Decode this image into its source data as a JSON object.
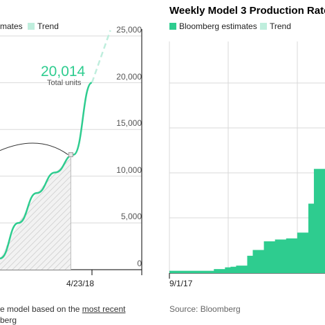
{
  "colors": {
    "estimate": "#2ecc8f",
    "trend": "#bfeedd",
    "grid": "#d9d9d9",
    "hatch": "#cfcfcf"
  },
  "left_panel": {
    "legend_estimates_fragment": "mates",
    "legend_trend": "Trend",
    "callout_value": "20,014",
    "callout_label": "Total units",
    "date_label": "4/23/18",
    "footnote_line1_prefix": "e model based on the ",
    "footnote_line1_link": "most recent",
    "footnote_line2": "berg"
  },
  "right_panel": {
    "title": "Weekly Model 3 Production Rate",
    "legend_estimates": "Bloomberg estimates",
    "legend_trend": "Trend",
    "date_label": "9/1/17",
    "source": "Source: Bloomberg"
  },
  "chart_data": [
    {
      "type": "line",
      "title": "",
      "series": [
        {
          "name": "Bloomberg estimates",
          "x": [
            0,
            0.2,
            0.4,
            0.6,
            0.8,
            1.0
          ],
          "values": [
            1200,
            5000,
            8200,
            10400,
            12300,
            20014
          ]
        },
        {
          "name": "Trend",
          "x": [
            1.0,
            1.2
          ],
          "values": [
            20014,
            25600
          ]
        }
      ],
      "yticks": [
        "0",
        "5,000",
        "10,000",
        "15,000",
        "20,000",
        "25,000"
      ],
      "ylim": [
        0,
        25000
      ],
      "xticks": [
        "4/23/18"
      ],
      "annotation": {
        "value": "20,014",
        "label": "Total units"
      },
      "grid": true
    },
    {
      "type": "area",
      "title": "Weekly Model 3 Production Rate",
      "series": [
        {
          "name": "Bloomberg estimates",
          "values": [
            40,
            40,
            40,
            40,
            40,
            40,
            40,
            40,
            70,
            70,
            100,
            110,
            130,
            130,
            300,
            400,
            400,
            550,
            550,
            580,
            580,
            600,
            600,
            700,
            700,
            1200,
            1800,
            1800
          ]
        }
      ],
      "xticks": [
        "9/1/17"
      ],
      "grid": true
    }
  ]
}
